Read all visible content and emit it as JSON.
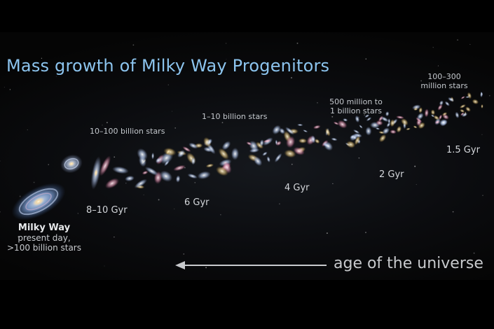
{
  "title": "Mass growth of Milky Way Progenitors",
  "milky_way": {
    "name": "Milky Way",
    "line1": "present day,",
    "line2": ">100 billion stars"
  },
  "stages": [
    {
      "age": "8–10 Gyr",
      "stars": "10–100 billion stars"
    },
    {
      "age": "6 Gyr",
      "stars": "1–10 billion stars"
    },
    {
      "age": "4 Gyr",
      "stars_line1": "500 million to",
      "stars_line2": "1 billion stars"
    },
    {
      "age": "2 Gyr"
    },
    {
      "age": "1.5 Gyr",
      "stars_line1": "100–300",
      "stars_line2": "million stars"
    }
  ],
  "arrow_label": "age of the universe",
  "colors": {
    "title": "#8cc4ee",
    "arrow": "#c7c9cc",
    "galaxy_glow": "#9fc4ff"
  }
}
